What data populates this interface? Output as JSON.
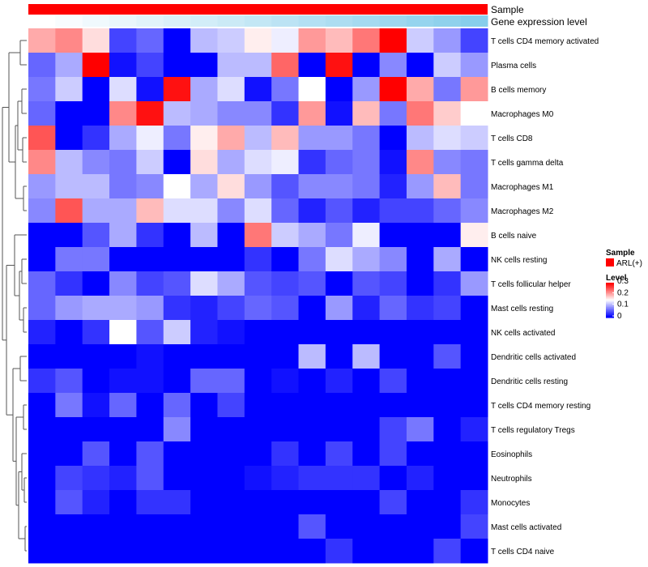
{
  "chart_data": {
    "type": "heatmap",
    "annotation_tracks": [
      {
        "name": "Sample",
        "color": "#ff0000"
      },
      {
        "name": "Gene expression level",
        "start_color": "#ffffff",
        "end_color": "#87ceeb"
      }
    ],
    "legend": {
      "placement": "right",
      "sample_title": "Sample",
      "sample_entries": [
        {
          "label": "ARL(+)",
          "color": "#ff0000"
        }
      ],
      "level_title": "Level",
      "level_ticks": [
        "0.3",
        "0.2",
        "0.1",
        "0"
      ]
    },
    "color_scale": {
      "min": 0,
      "max": 0.3,
      "low": "#0000ff",
      "mid": "#ffffff",
      "high": "#ff0000"
    },
    "rows": [
      "T cells CD4 memory activated",
      "Plasma cells",
      "B cells memory",
      "Macrophages M0",
      "T cells CD8",
      "T cells gamma delta",
      "Macrophages M1",
      "Macrophages M2",
      "B cells naive",
      "NK cells resting",
      "T cells follicular helper",
      "Mast cells resting",
      "NK cells activated",
      "Dendritic cells activated",
      "Dendritic cells resting",
      "T cells CD4 memory resting",
      "T cells regulatory  Tregs",
      "Eosinophils",
      "Neutrophils",
      "Monocytes",
      "Mast cells activated",
      "T cells CD4 naive"
    ],
    "values": [
      [
        0.2,
        0.22,
        0.17,
        0.04,
        0.06,
        0.0,
        0.11,
        0.12,
        0.16,
        0.14,
        0.21,
        0.19,
        0.23,
        0.3,
        0.12,
        0.09,
        0.04
      ],
      [
        0.06,
        0.1,
        0.3,
        0.01,
        0.04,
        0.0,
        0.0,
        0.11,
        0.11,
        0.24,
        0.0,
        0.29,
        0.0,
        0.08,
        0.0,
        0.12,
        0.09
      ],
      [
        0.07,
        0.12,
        0.0,
        0.13,
        0.01,
        0.29,
        0.1,
        0.13,
        0.01,
        0.07,
        0.15,
        0.0,
        0.09,
        0.3,
        0.2,
        0.07,
        0.21
      ],
      [
        0.06,
        0.0,
        0.0,
        0.22,
        0.29,
        0.11,
        0.1,
        0.08,
        0.08,
        0.03,
        0.21,
        0.01,
        0.19,
        0.07,
        0.23,
        0.18,
        0.15
      ],
      [
        0.25,
        0.0,
        0.03,
        0.1,
        0.14,
        0.07,
        0.16,
        0.2,
        0.11,
        0.19,
        0.09,
        0.09,
        0.07,
        0.0,
        0.11,
        0.13,
        0.12
      ],
      [
        0.22,
        0.11,
        0.08,
        0.07,
        0.12,
        0.0,
        0.17,
        0.1,
        0.13,
        0.14,
        0.03,
        0.06,
        0.07,
        0.01,
        0.22,
        0.08,
        0.07
      ],
      [
        0.09,
        0.11,
        0.11,
        0.07,
        0.08,
        0.15,
        0.1,
        0.17,
        0.09,
        0.05,
        0.08,
        0.08,
        0.07,
        0.02,
        0.09,
        0.19,
        0.07
      ],
      [
        0.08,
        0.25,
        0.1,
        0.1,
        0.19,
        0.13,
        0.13,
        0.08,
        0.13,
        0.06,
        0.02,
        0.05,
        0.02,
        0.04,
        0.04,
        0.06,
        0.08
      ],
      [
        0.0,
        0.0,
        0.05,
        0.1,
        0.03,
        0.0,
        0.11,
        0.0,
        0.23,
        0.12,
        0.1,
        0.07,
        0.14,
        0.0,
        0.0,
        0.0,
        0.16
      ],
      [
        0.0,
        0.07,
        0.07,
        0.0,
        0.0,
        0.0,
        0.0,
        0.0,
        0.03,
        0.0,
        0.07,
        0.13,
        0.1,
        0.08,
        0.0,
        0.1,
        0.0
      ],
      [
        0.06,
        0.03,
        0.0,
        0.08,
        0.04,
        0.05,
        0.13,
        0.1,
        0.05,
        0.04,
        0.05,
        0.0,
        0.05,
        0.04,
        0.0,
        0.03,
        0.09
      ],
      [
        0.06,
        0.09,
        0.1,
        0.1,
        0.09,
        0.03,
        0.02,
        0.04,
        0.06,
        0.05,
        0.0,
        0.09,
        0.02,
        0.06,
        0.03,
        0.04,
        0.0
      ],
      [
        0.02,
        0.0,
        0.03,
        0.15,
        0.05,
        0.12,
        0.02,
        0.01,
        0.0,
        0.0,
        0.0,
        0.0,
        0.0,
        0.0,
        0.0,
        0.0,
        0.0
      ],
      [
        0.0,
        0.0,
        0.0,
        0.0,
        0.01,
        0.0,
        0.0,
        0.0,
        0.0,
        0.0,
        0.11,
        0.0,
        0.11,
        0.0,
        0.0,
        0.05,
        0.0
      ],
      [
        0.03,
        0.05,
        0.0,
        0.01,
        0.01,
        0.0,
        0.06,
        0.06,
        0.0,
        0.01,
        0.0,
        0.02,
        0.0,
        0.04,
        0.0,
        0.0,
        0.0
      ],
      [
        0.0,
        0.07,
        0.01,
        0.06,
        0.0,
        0.06,
        0.0,
        0.04,
        0.0,
        0.0,
        0.0,
        0.0,
        0.0,
        0.0,
        0.0,
        0.0,
        0.0
      ],
      [
        0.0,
        0.0,
        0.0,
        0.0,
        0.0,
        0.08,
        0.0,
        0.0,
        0.0,
        0.0,
        0.0,
        0.0,
        0.0,
        0.04,
        0.07,
        0.0,
        0.02
      ],
      [
        0.0,
        0.0,
        0.05,
        0.0,
        0.05,
        0.0,
        0.0,
        0.0,
        0.0,
        0.03,
        0.0,
        0.04,
        0.0,
        0.04,
        0.0,
        0.0,
        0.0
      ],
      [
        0.0,
        0.04,
        0.03,
        0.02,
        0.05,
        0.0,
        0.0,
        0.0,
        0.01,
        0.02,
        0.03,
        0.03,
        0.03,
        0.0,
        0.02,
        0.0,
        0.0
      ],
      [
        0.0,
        0.05,
        0.02,
        0.0,
        0.03,
        0.03,
        0.0,
        0.0,
        0.0,
        0.0,
        0.0,
        0.0,
        0.0,
        0.04,
        0.0,
        0.0,
        0.03
      ],
      [
        0.0,
        0.0,
        0.0,
        0.0,
        0.0,
        0.0,
        0.0,
        0.0,
        0.0,
        0.0,
        0.05,
        0.0,
        0.0,
        0.0,
        0.0,
        0.0,
        0.04
      ],
      [
        0.0,
        0.0,
        0.0,
        0.0,
        0.0,
        0.0,
        0.0,
        0.0,
        0.0,
        0.0,
        0.0,
        0.03,
        0.0,
        0.0,
        0.0,
        0.04,
        0.0
      ]
    ]
  }
}
